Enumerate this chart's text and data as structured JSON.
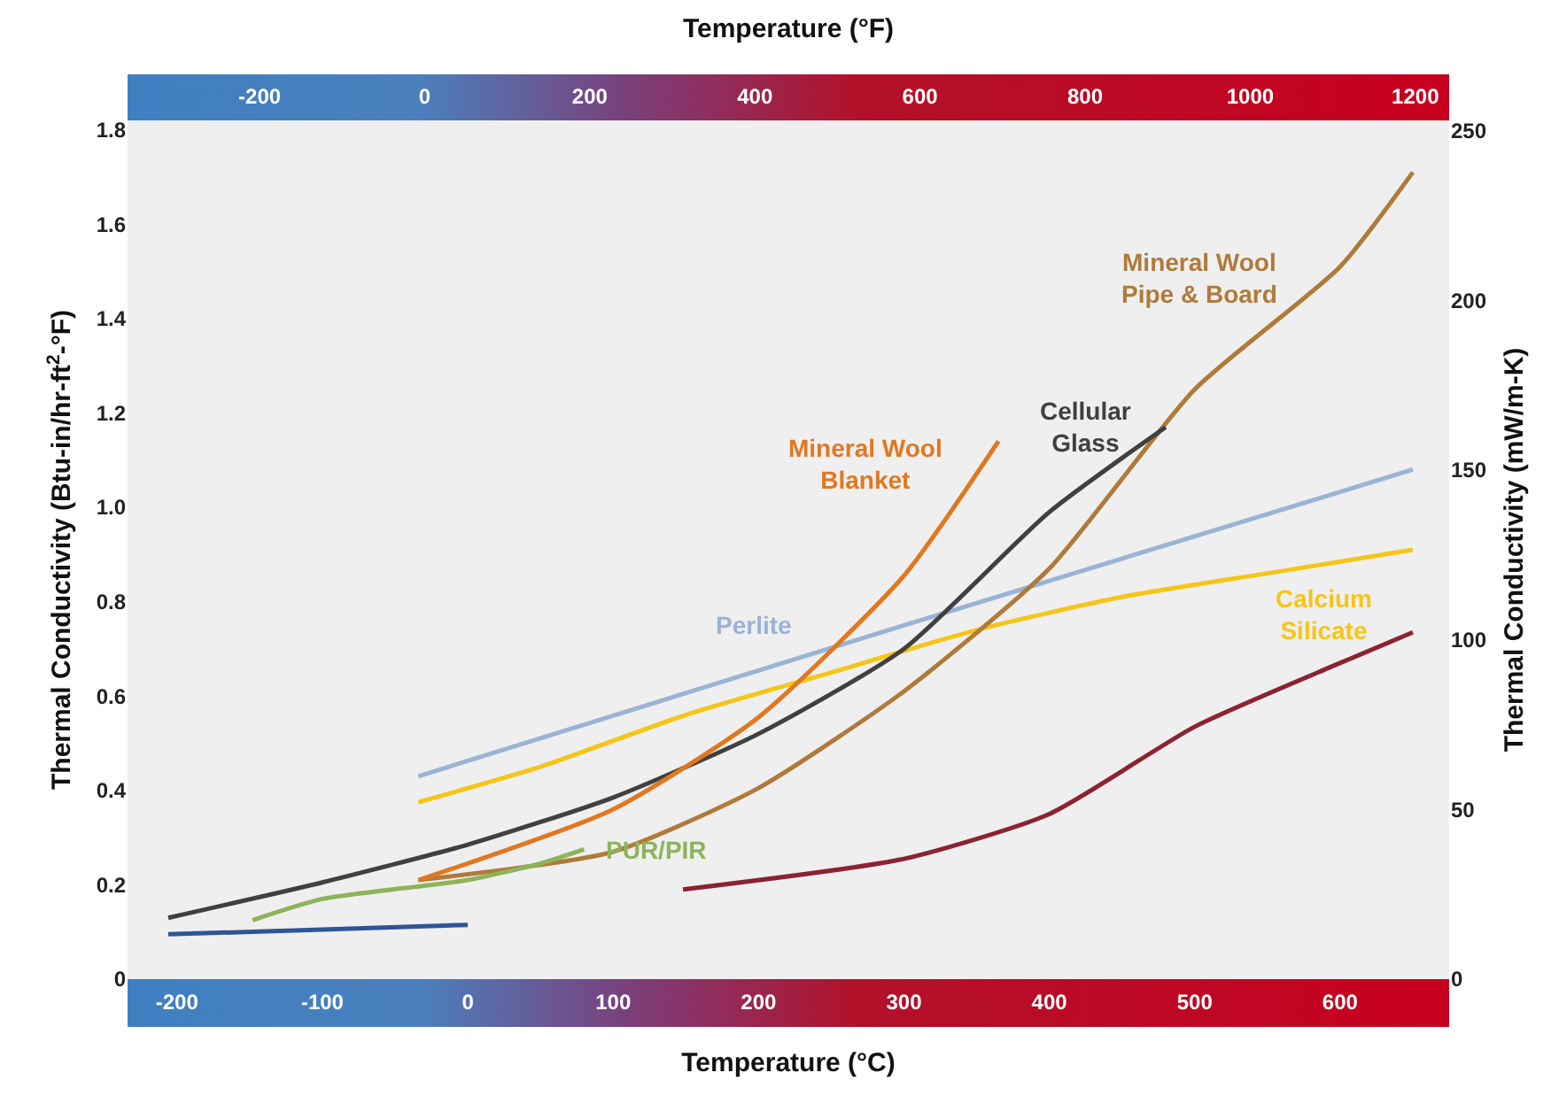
{
  "chart_data": {
    "type": "line",
    "xlabel": "Temperature (°C)",
    "x2label": "Temperature (°F)",
    "ylabel": "Thermal Conductivity (Btu-in/hr-ft$^{2}$-°F)",
    "y2label": "Thermal Conductivity (mW/m-K)",
    "xlim": [
      -234,
      675
    ],
    "xticks": [
      -200,
      -100,
      0,
      100,
      200,
      300,
      400,
      500,
      600
    ],
    "x2lim": [
      -360,
      1241
    ],
    "x2ticks": [
      -200,
      0,
      200,
      400,
      600,
      800,
      1000,
      1200
    ],
    "ylim": [
      0,
      1.82
    ],
    "yticks": [
      0,
      0.2,
      0.4,
      0.6,
      0.8,
      {
        "value": 1,
        "label": "1.0"
      },
      1.2,
      1.4,
      1.6,
      1.8
    ],
    "y2lim": [
      0,
      253
    ],
    "y2ticks": [
      0,
      50,
      100,
      150,
      200,
      250
    ],
    "legend": false,
    "marker": "none",
    "line_style": "solid",
    "series": [
      {
        "name": "Perlite",
        "color": "#9ab3d5",
        "x": [
          -34,
          300,
          650
        ],
        "values": [
          0.43,
          0.75,
          1.08
        ]
      },
      {
        "name": "Calcium\nSilicate",
        "color": "#f5c518",
        "x": [
          -34,
          50,
          150,
          250,
          350,
          450,
          550,
          650
        ],
        "values": [
          0.375,
          0.45,
          0.56,
          0.65,
          0.74,
          0.81,
          0.86,
          0.91
        ]
      },
      {
        "name": "Mineral Wool\nPipe & Board",
        "color": "#b07a3a",
        "x": [
          -34,
          100,
          200,
          300,
          400,
          500,
          600,
          650
        ],
        "values": [
          0.21,
          0.27,
          0.405,
          0.61,
          0.87,
          1.25,
          1.51,
          1.71
        ]
      },
      {
        "name": "Cellular\nGlass",
        "color": "#404040",
        "x": [
          -206,
          -100,
          0,
          100,
          200,
          300,
          400,
          480
        ],
        "values": [
          0.13,
          0.205,
          0.285,
          0.385,
          0.52,
          0.7,
          0.99,
          1.17
        ]
      },
      {
        "name": "Mineral Wool\nBlanket",
        "color": "#e07820",
        "x": [
          -34,
          100,
          200,
          300,
          365
        ],
        "values": [
          0.21,
          0.36,
          0.555,
          0.855,
          1.14
        ]
      },
      {
        "name": "PUR/PIR",
        "color": "#8db45a",
        "x": [
          -148,
          -100,
          0,
          50,
          80
        ],
        "values": [
          0.125,
          0.17,
          0.21,
          0.245,
          0.275
        ]
      },
      {
        "color": "#2f5597",
        "x": [
          -206,
          -100,
          0
        ],
        "values": [
          0.095,
          0.105,
          0.115
        ]
      },
      {
        "color": "#8b2332",
        "x": [
          148,
          300,
          400,
          500,
          600,
          650
        ],
        "values": [
          0.19,
          0.255,
          0.35,
          0.535,
          0.67,
          0.735
        ]
      }
    ]
  }
}
